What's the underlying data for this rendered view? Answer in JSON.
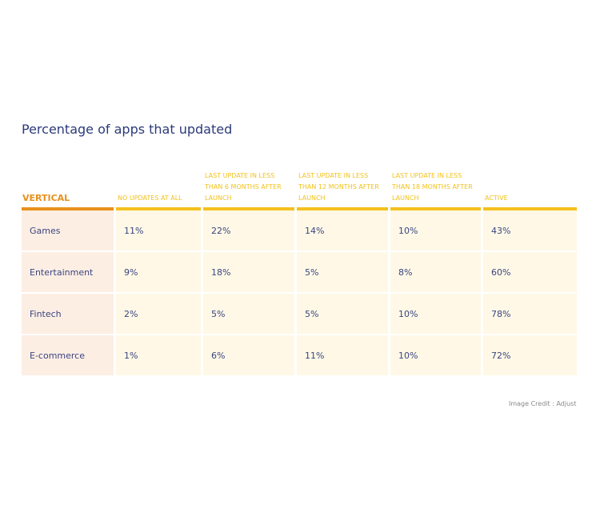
{
  "title": "Percentage of apps that updated",
  "table": {
    "headers": [
      "VERTICAL",
      "NO UPDATES AT ALL",
      "LAST UPDATE IN LESS THAN 6 MONTHS AFTER LAUNCH",
      "LAST UPDATE IN LESS THAN 12 MONTHS AFTER LAUNCH",
      "LAST UPDATE IN LESS THAN 18 MONTHS AFTER LAUNCH",
      "ACTIVE"
    ],
    "rows": [
      [
        "Games",
        "11%",
        "22%",
        "14%",
        "10%",
        "43%"
      ],
      [
        "Entertainment",
        "9%",
        "18%",
        "5%",
        "8%",
        "60%"
      ],
      [
        "Fintech",
        "2%",
        "5%",
        "5%",
        "10%",
        "78%"
      ],
      [
        "E-commerce",
        "1%",
        "6%",
        "11%",
        "10%",
        "72%"
      ]
    ]
  },
  "credit": "Image Credit : Adjust",
  "colors": {
    "title": "#2b3a7a",
    "header": "#f2c21a",
    "vertical_accent": "#e8901c",
    "cell_bg": "#fff8e6",
    "first_col_bg": "#fdeee4"
  }
}
